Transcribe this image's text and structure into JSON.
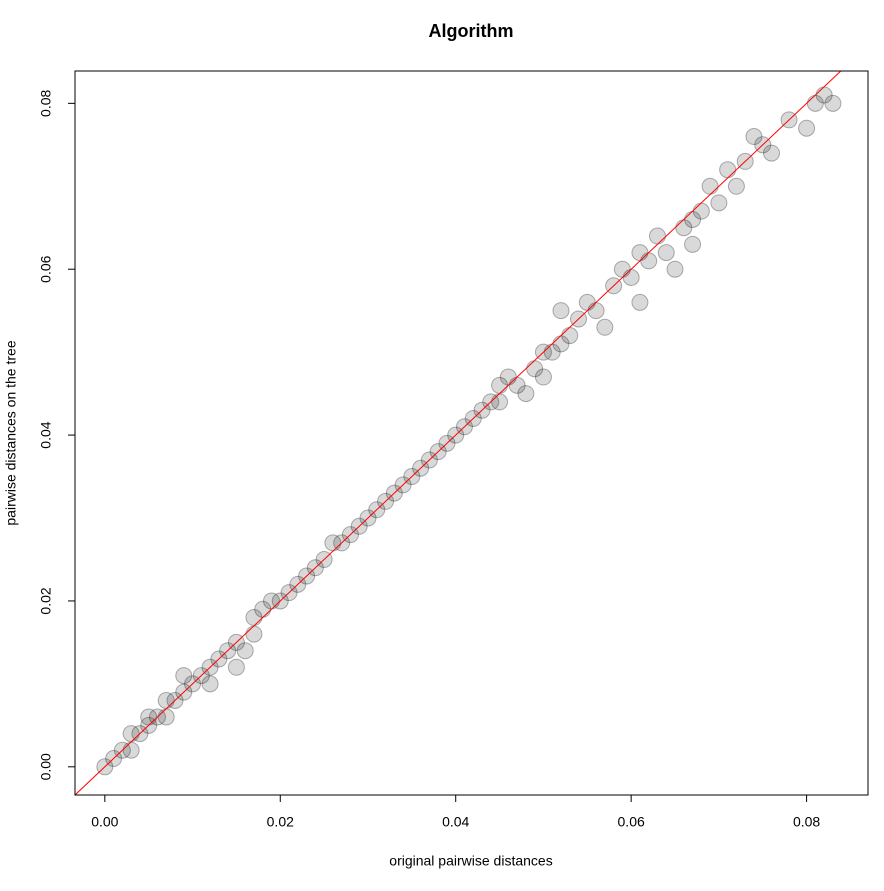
{
  "chart_data": {
    "type": "scatter",
    "title": "Algorithm",
    "x_label": "original pairwise distances",
    "y_label": "pairwise distances on the tree",
    "xlim": [
      -0.0034,
      0.087
    ],
    "ylim": [
      -0.0034,
      0.0839
    ],
    "xticks": [
      {
        "value": 0,
        "label": "0.00"
      },
      0.02,
      0.04,
      0.06,
      0.08
    ],
    "yticks": [
      {
        "value": 0,
        "label": "0.00"
      },
      0.02,
      0.04,
      0.06,
      0.08
    ],
    "color": "#000000",
    "reference_line": {
      "slope": 1,
      "intercept": 0,
      "color": "#ff0000"
    },
    "x": [
      0.0,
      0.001,
      0.002,
      0.003,
      0.003,
      0.004,
      0.005,
      0.005,
      0.006,
      0.007,
      0.007,
      0.008,
      0.009,
      0.009,
      0.01,
      0.011,
      0.012,
      0.012,
      0.013,
      0.014,
      0.015,
      0.015,
      0.016,
      0.017,
      0.017,
      0.018,
      0.019,
      0.02,
      0.021,
      0.022,
      0.023,
      0.024,
      0.025,
      0.026,
      0.027,
      0.028,
      0.029,
      0.03,
      0.031,
      0.032,
      0.033,
      0.034,
      0.035,
      0.036,
      0.037,
      0.038,
      0.039,
      0.04,
      0.041,
      0.042,
      0.043,
      0.044,
      0.045,
      0.045,
      0.046,
      0.047,
      0.048,
      0.049,
      0.05,
      0.05,
      0.051,
      0.052,
      0.052,
      0.053,
      0.054,
      0.055,
      0.056,
      0.057,
      0.058,
      0.059,
      0.06,
      0.061,
      0.061,
      0.062,
      0.063,
      0.064,
      0.065,
      0.066,
      0.067,
      0.067,
      0.068,
      0.069,
      0.07,
      0.071,
      0.072,
      0.073,
      0.074,
      0.075,
      0.076,
      0.078,
      0.08,
      0.081,
      0.082,
      0.083
    ],
    "values": [
      0.0,
      0.001,
      0.002,
      0.002,
      0.004,
      0.004,
      0.005,
      0.006,
      0.006,
      0.006,
      0.008,
      0.008,
      0.009,
      0.011,
      0.01,
      0.011,
      0.012,
      0.01,
      0.013,
      0.014,
      0.012,
      0.015,
      0.014,
      0.016,
      0.018,
      0.019,
      0.02,
      0.02,
      0.021,
      0.022,
      0.023,
      0.024,
      0.025,
      0.027,
      0.027,
      0.028,
      0.029,
      0.03,
      0.031,
      0.032,
      0.033,
      0.034,
      0.035,
      0.036,
      0.037,
      0.038,
      0.039,
      0.04,
      0.041,
      0.042,
      0.043,
      0.044,
      0.044,
      0.046,
      0.047,
      0.046,
      0.045,
      0.048,
      0.047,
      0.05,
      0.05,
      0.051,
      0.055,
      0.052,
      0.054,
      0.056,
      0.055,
      0.053,
      0.058,
      0.06,
      0.059,
      0.062,
      0.056,
      0.061,
      0.064,
      0.062,
      0.06,
      0.065,
      0.066,
      0.063,
      0.067,
      0.07,
      0.068,
      0.072,
      0.07,
      0.073,
      0.076,
      0.075,
      0.074,
      0.078,
      0.077,
      0.08,
      0.081,
      0.08
    ]
  }
}
